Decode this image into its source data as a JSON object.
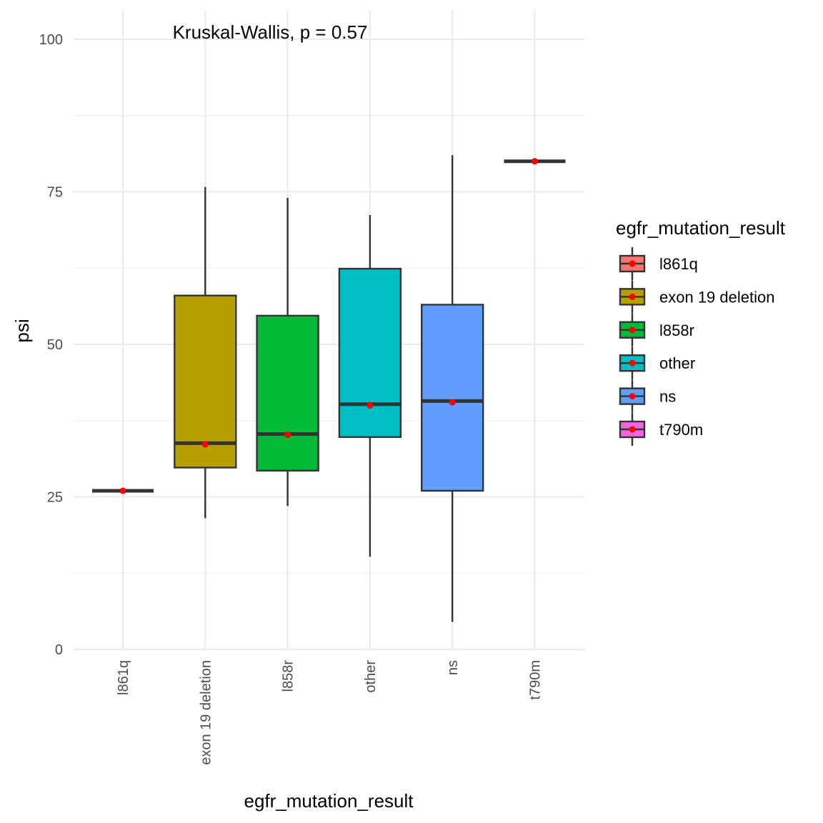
{
  "chart_data": {
    "type": "box",
    "annotation": "Kruskal-Wallis, p = 0.57",
    "xlabel": "egfr_mutation_result",
    "ylabel": "psi",
    "ylim": [
      0,
      100
    ],
    "yticks": [
      0,
      25,
      50,
      75,
      100
    ],
    "grid": true,
    "legend": {
      "title": "egfr_mutation_result",
      "position": "right"
    },
    "categories": [
      "l861q",
      "exon 19 deletion",
      "l858r",
      "other",
      "ns",
      "t790m"
    ],
    "colors": [
      "#F8766D",
      "#B79F00",
      "#00BA38",
      "#00BFC4",
      "#619CFF",
      "#F564E3"
    ],
    "series": [
      {
        "category": "l861q",
        "min": 26,
        "q1": 26,
        "median": 26,
        "q3": 26,
        "max": 26,
        "mean": 26
      },
      {
        "category": "exon 19 deletion",
        "min": 21.5,
        "q1": 29.8,
        "median": 33.8,
        "q3": 58,
        "max": 75.8,
        "mean": 33.6
      },
      {
        "category": "l858r",
        "min": 23.5,
        "q1": 29.3,
        "median": 35.3,
        "q3": 54.7,
        "max": 74,
        "mean": 35.2
      },
      {
        "category": "other",
        "min": 15.2,
        "q1": 34.8,
        "median": 40.2,
        "q3": 62.4,
        "max": 71.2,
        "mean": 40
      },
      {
        "category": "ns",
        "min": 4.5,
        "q1": 26,
        "median": 40.7,
        "q3": 56.5,
        "max": 81,
        "mean": 40.5
      },
      {
        "category": "t790m",
        "min": 80,
        "q1": 80,
        "median": 80,
        "q3": 80,
        "max": 80,
        "mean": 80
      }
    ]
  }
}
